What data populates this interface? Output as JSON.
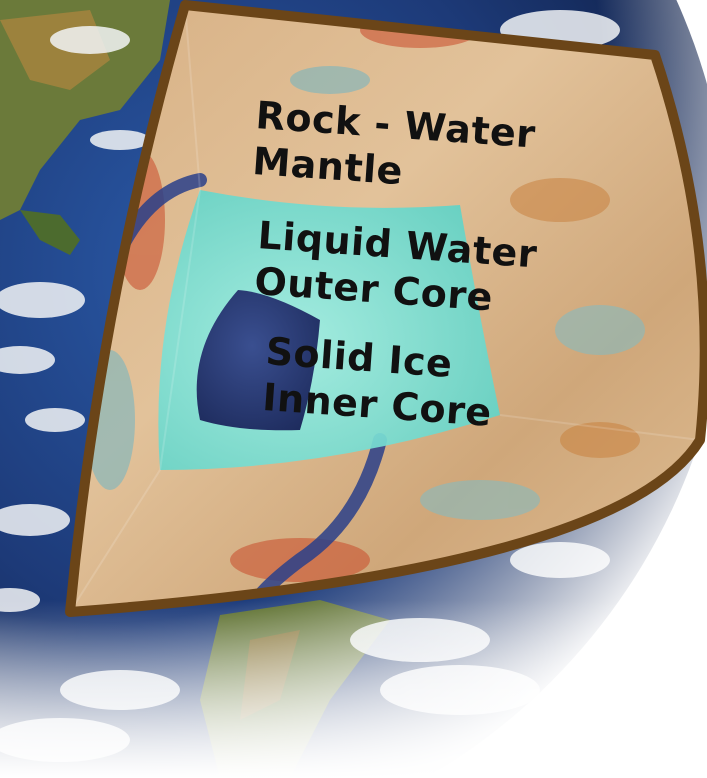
{
  "diagram": {
    "layers": [
      {
        "id": "mantle",
        "line1": "Rock - Water",
        "line2": "Mantle",
        "color": "#d9b58a"
      },
      {
        "id": "outer-core",
        "line1": "Liquid Water",
        "line2": "Outer Core",
        "color": "#7fe3d6"
      },
      {
        "id": "inner-core",
        "line1": "Solid Ice",
        "line2": "Inner Core",
        "color": "#2d3f7a"
      }
    ],
    "colors": {
      "ocean": "#1d3a78",
      "land": "#4c6b2e",
      "cloud": "#f2f4f6",
      "cutaway_rim": "#6b4518",
      "text": "#111111"
    }
  }
}
